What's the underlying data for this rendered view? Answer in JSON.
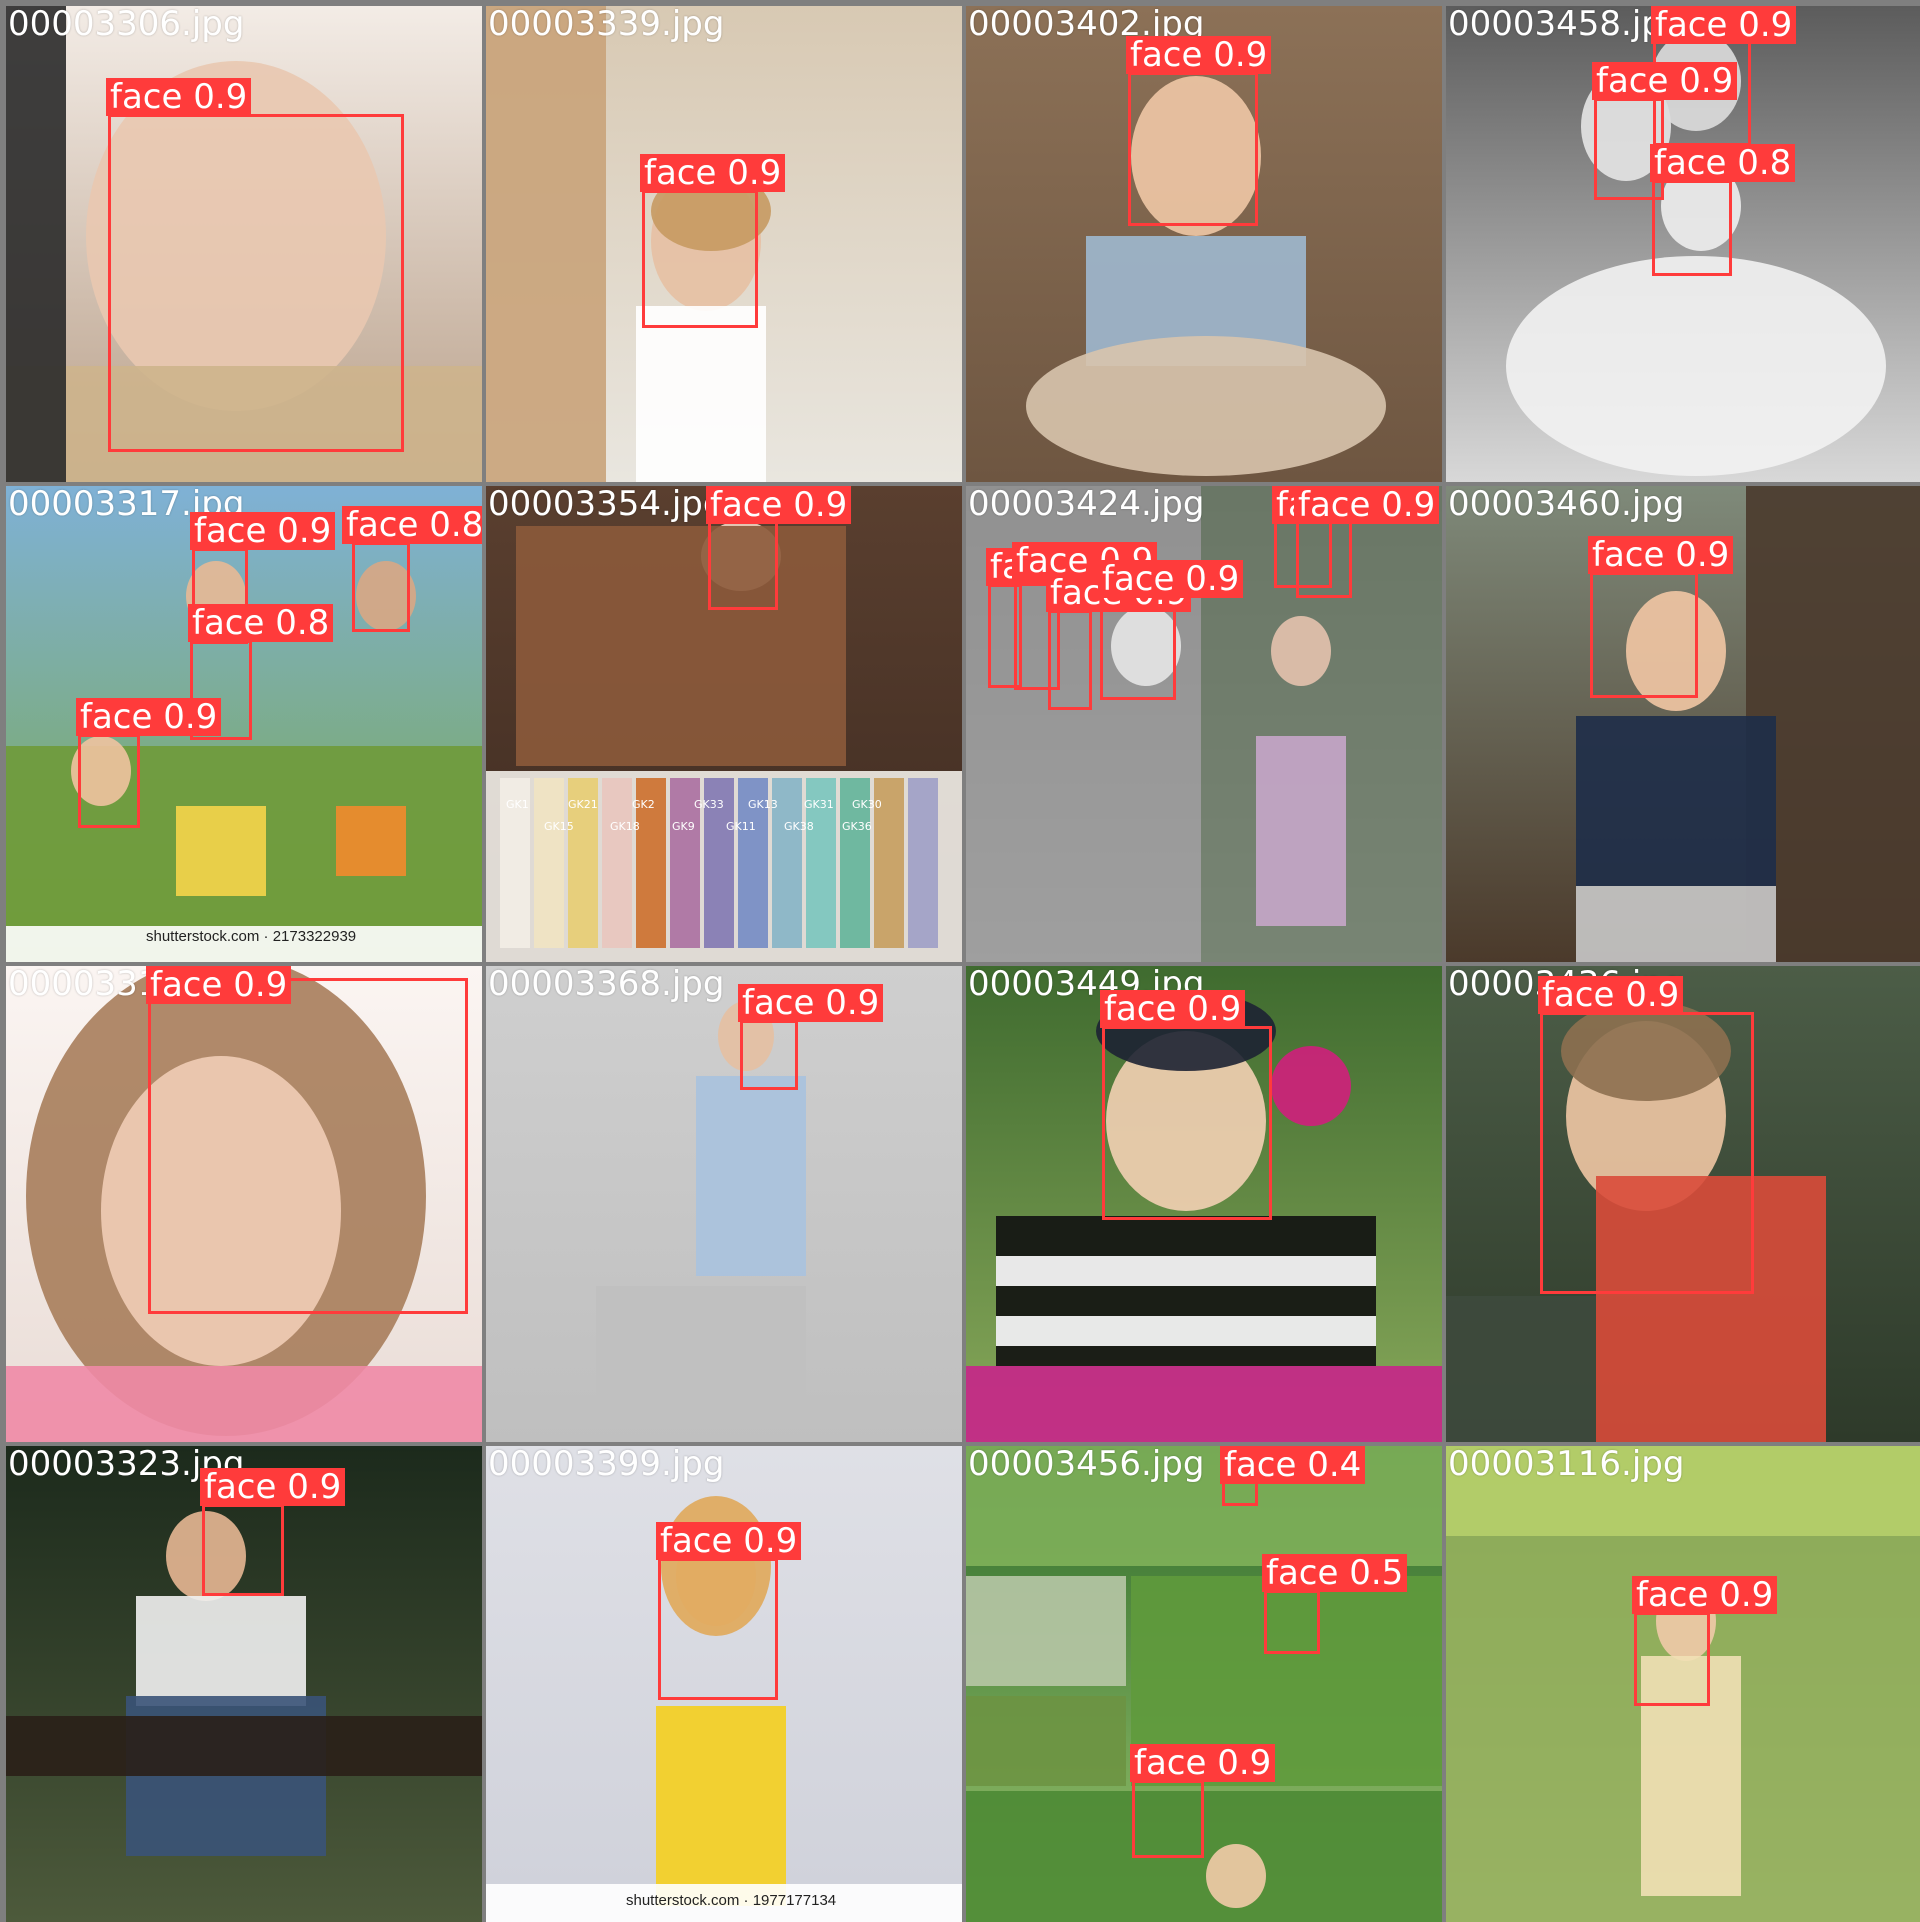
{
  "colors": {
    "box": "#ff3b3b",
    "label_text": "#ffffff",
    "background": "#7f7f7f"
  },
  "tiles": [
    {
      "file": "00003306.jpg",
      "detections": [
        {
          "label": "face 0.9"
        }
      ]
    },
    {
      "file": "00003339.jpg",
      "detections": [
        {
          "label": "face 0.9"
        }
      ]
    },
    {
      "file": "00003402.jpg",
      "detections": [
        {
          "label": "face 0.9"
        }
      ]
    },
    {
      "file": "00003458.jpg",
      "detections": [
        {
          "label": "face 0.9"
        },
        {
          "label": "face 0.9"
        },
        {
          "label": "face 0.8"
        }
      ]
    },
    {
      "file": "00003317.jpg",
      "caption": "shutterstock.com · 2173322939",
      "detections": [
        {
          "label": "face 0.9"
        },
        {
          "label": "face 0.8"
        },
        {
          "label": "face 0.8"
        },
        {
          "label": "face 0.9"
        }
      ]
    },
    {
      "file": "00003354.jpg",
      "swatches": [
        "GK1",
        "GK21",
        "GK2",
        "GK33",
        "GK13",
        "GK31",
        "GK30",
        "GK15",
        "GK18",
        "GK9",
        "GK11",
        "GK38",
        "GK36"
      ],
      "detections": [
        {
          "label": "face 0.9"
        }
      ]
    },
    {
      "file": "00003424.jpg",
      "detections": [
        {
          "label": "face 0.9"
        },
        {
          "label": "face 0.9"
        },
        {
          "label": "face 0.5"
        },
        {
          "label": "face 0.9"
        },
        {
          "label": "face 0.9"
        },
        {
          "label": "face 0.9"
        }
      ]
    },
    {
      "file": "00003460.jpg",
      "detections": [
        {
          "label": "face 0.9"
        }
      ]
    },
    {
      "file": "00003316.jpg",
      "detections": [
        {
          "label": "face 0.9"
        }
      ]
    },
    {
      "file": "00003368.jpg",
      "detections": [
        {
          "label": "face 0.9"
        }
      ]
    },
    {
      "file": "00003449.jpg",
      "detections": [
        {
          "label": "face 0.9"
        }
      ]
    },
    {
      "file": "00003436.jpg",
      "detections": [
        {
          "label": "face 0.9"
        }
      ]
    },
    {
      "file": "00003323.jpg",
      "detections": [
        {
          "label": "face 0.9"
        }
      ]
    },
    {
      "file": "00003399.jpg",
      "caption": "shutterstock.com · 1977177134",
      "detections": [
        {
          "label": "face 0.9"
        }
      ]
    },
    {
      "file": "00003456.jpg",
      "detections": [
        {
          "label": "face 0.4"
        },
        {
          "label": "face 0.5"
        },
        {
          "label": "face 0.9"
        }
      ]
    },
    {
      "file": "00003116.jpg",
      "detections": [
        {
          "label": "face 0.9"
        }
      ]
    }
  ]
}
